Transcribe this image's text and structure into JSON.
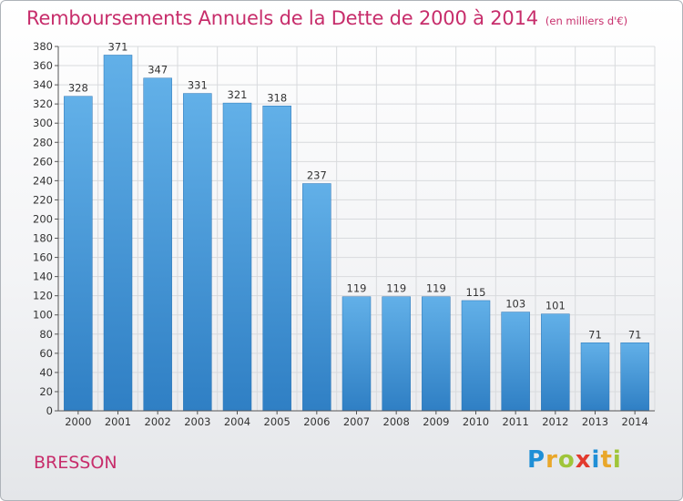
{
  "chart_data": {
    "type": "bar",
    "title": "Remboursements Annuels de la Dette de 2000 à 2014",
    "subtitle": "(en milliers d'€)",
    "categories": [
      "2000",
      "2001",
      "2002",
      "2003",
      "2004",
      "2005",
      "2006",
      "2007",
      "2008",
      "2009",
      "2010",
      "2011",
      "2012",
      "2013",
      "2014"
    ],
    "values": [
      328,
      371,
      347,
      331,
      321,
      318,
      237,
      119,
      119,
      119,
      115,
      103,
      101,
      71,
      71
    ],
    "ylim": [
      0,
      380
    ],
    "yticks": [
      0,
      20,
      40,
      60,
      80,
      100,
      120,
      140,
      160,
      180,
      200,
      220,
      240,
      260,
      280,
      300,
      320,
      340,
      360,
      380
    ],
    "xlabel": "",
    "ylabel": "",
    "grid": true
  },
  "commune": "BRESSON",
  "logo": {
    "text": "Proxiti",
    "parts": [
      "P",
      "r",
      "o",
      "x",
      "i",
      "t",
      "i"
    ]
  },
  "colors": {
    "bar_top": "#62b0e8",
    "bar_bottom": "#2f7fc4",
    "title": "#c72d6b",
    "grid": "#d8dadd"
  }
}
